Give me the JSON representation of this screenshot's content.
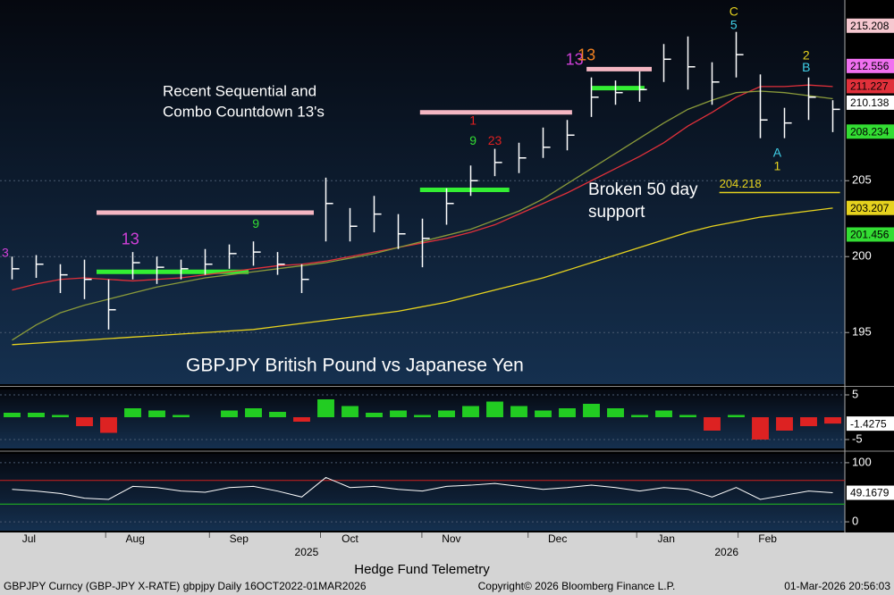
{
  "chart_data": [
    {
      "type": "ohlc",
      "title": "GBPJPY British Pound vs Japanese Yen",
      "x": [
        0,
        1,
        2,
        3,
        4,
        5,
        6,
        7,
        8,
        9,
        10,
        11,
        12,
        13,
        14,
        15,
        16,
        17,
        18,
        19,
        20,
        21,
        22,
        23,
        24,
        25,
        26,
        27,
        28,
        29,
        30,
        31,
        32,
        33,
        34
      ],
      "high": [
        200,
        200.1,
        199.5,
        199.8,
        198.5,
        200.3,
        200,
        199.8,
        200.5,
        200.8,
        201,
        200.3,
        199.5,
        205.2,
        203.2,
        204,
        202.8,
        202.5,
        204.5,
        206,
        207.1,
        207.5,
        208.5,
        209,
        211.8,
        211.6,
        212.2,
        214,
        214.5,
        212.8,
        214.8,
        212,
        209.8,
        211.8,
        210.3
      ],
      "low": [
        198.5,
        198.6,
        197.6,
        197.2,
        195.2,
        198.5,
        198.2,
        198.5,
        198.8,
        199.2,
        199.4,
        198.8,
        197.6,
        201,
        201,
        201.6,
        200.5,
        199.3,
        202.1,
        204,
        205.3,
        205.5,
        206.5,
        207,
        209.2,
        210,
        210.2,
        211.5,
        211,
        210,
        211.8,
        207.8,
        207.8,
        209,
        208.2
      ],
      "close": [
        199.2,
        199.5,
        198.8,
        198.5,
        196.5,
        199.6,
        199.3,
        199.2,
        199.5,
        200.2,
        200.3,
        199.5,
        198.5,
        203.5,
        202,
        202.8,
        201.5,
        201.2,
        203.5,
        205,
        206.2,
        206.5,
        207.2,
        208,
        210.5,
        210.8,
        211,
        213,
        212.5,
        211.5,
        213.3,
        209,
        208.8,
        210.5,
        209.7
      ],
      "bar_color": "#ffffff",
      "series": [
        {
          "color": "#e0303a",
          "values": [
            197.8,
            198.2,
            198.5,
            198.6,
            198.5,
            198.4,
            198.5,
            198.6,
            198.8,
            199,
            199.2,
            199.4,
            199.5,
            199.7,
            200,
            200.3,
            200.6,
            200.9,
            201.2,
            201.6,
            202.1,
            202.8,
            203.5,
            204.2,
            205,
            205.8,
            206.6,
            207.5,
            208.6,
            209.5,
            210.5,
            211.2,
            211.2,
            211.3,
            211.2
          ]
        },
        {
          "color": "#8a9a3a",
          "values": [
            194.5,
            195.5,
            196.3,
            196.8,
            197.2,
            197.6,
            198,
            198.3,
            198.6,
            198.8,
            199,
            199.2,
            199.4,
            199.6,
            199.9,
            200.2,
            200.6,
            201,
            201.4,
            201.8,
            202.4,
            203,
            203.8,
            204.8,
            205.8,
            206.8,
            207.8,
            208.8,
            209.7,
            210.3,
            210.8,
            210.9,
            210.8,
            210.6,
            210.4
          ]
        },
        {
          "color": "#e6d21e",
          "values": [
            194.2,
            194.3,
            194.4,
            194.5,
            194.6,
            194.7,
            194.8,
            194.9,
            195,
            195.1,
            195.2,
            195.4,
            195.6,
            195.8,
            196,
            196.2,
            196.4,
            196.7,
            197,
            197.4,
            197.8,
            198.2,
            198.6,
            199.1,
            199.6,
            200.1,
            200.6,
            201.1,
            201.6,
            202,
            202.3,
            202.6,
            202.8,
            203,
            203.2
          ]
        }
      ],
      "levels": [
        {
          "value": 202.9,
          "from": 3.5,
          "to": 12.5,
          "color": "#f4b6c2",
          "width": 5
        },
        {
          "value": 209.5,
          "from": 16.9,
          "to": 23.2,
          "color": "#f4b6c2",
          "width": 5
        },
        {
          "value": 212.35,
          "from": 23.8,
          "to": 26.5,
          "color": "#f4b6c2",
          "width": 5
        },
        {
          "value": 199.0,
          "from": 3.5,
          "to": 9.8,
          "color": "#33ee33",
          "width": 5
        },
        {
          "value": 204.4,
          "from": 16.9,
          "to": 20.6,
          "color": "#33ee33",
          "width": 5
        },
        {
          "value": 211.1,
          "from": 24,
          "to": 26.2,
          "color": "#33ee33",
          "width": 5
        },
        {
          "value": 204.218,
          "from": 29.3,
          "to": 34.3,
          "color": "#e6d21e",
          "width": 1.5
        }
      ],
      "level_label": 204.218,
      "annotations": [
        {
          "text": "3",
          "x": -0.28,
          "y": 200.2,
          "color": "#d040d8"
        },
        {
          "text": "13",
          "x": 4.9,
          "y": 201.1,
          "color": "#d040d8"
        },
        {
          "text": "9",
          "x": 10.1,
          "y": 202.1,
          "color": "#33dd33"
        },
        {
          "text": "9",
          "x": 19.1,
          "y": 207.6,
          "color": "#33dd33"
        },
        {
          "text": "1",
          "x": 19.1,
          "y": 208.9,
          "color": "#e02020"
        },
        {
          "text": "23",
          "x": 20,
          "y": 207.6,
          "color": "#e02020"
        },
        {
          "text": "13",
          "x": 23.3,
          "y": 212.9,
          "color": "#d040d8"
        },
        {
          "text": "13",
          "x": 23.8,
          "y": 213.2,
          "color": "#f08020"
        },
        {
          "text": "C",
          "x": 29.9,
          "y": 216.1,
          "color": "#e6d21e"
        },
        {
          "text": "5",
          "x": 29.9,
          "y": 215.2,
          "color": "#40d0e8"
        },
        {
          "text": "A",
          "x": 31.7,
          "y": 206.8,
          "color": "#40d0e8"
        },
        {
          "text": "1",
          "x": 31.7,
          "y": 205.9,
          "color": "#e6d21e"
        },
        {
          "text": "2",
          "x": 32.9,
          "y": 213.2,
          "color": "#e6d21e"
        },
        {
          "text": "B",
          "x": 32.9,
          "y": 212.4,
          "color": "#40d0e8"
        }
      ],
      "notes": [
        "Recent Sequential and",
        "Combo Countdown 13's",
        "Broken 50 day",
        "support"
      ],
      "tags": [
        {
          "value": 215.208,
          "color": "#f6c8d0"
        },
        {
          "value": 212.556,
          "color": "#f070f0"
        },
        {
          "value": 211.227,
          "color": "#e0303a"
        },
        {
          "value": 210.138,
          "color": "#ffffff"
        },
        {
          "value": 208.234,
          "color": "#33dd33"
        },
        {
          "value": 203.207,
          "color": "#e6d21e"
        },
        {
          "value": 201.456,
          "color": "#33dd33"
        }
      ],
      "xlim": [
        -0.5,
        34.5
      ],
      "ylim": [
        191.6,
        216.9
      ],
      "yticks": [
        195,
        200,
        205
      ]
    },
    {
      "type": "bar",
      "up_color": "#22cc22",
      "down_color": "#dd2222",
      "values": [
        1,
        1,
        0.5,
        -2,
        -3.5,
        2,
        1.5,
        0.5,
        0,
        1.5,
        2,
        1.2,
        -1,
        4,
        2.5,
        1,
        1.5,
        0.5,
        1.5,
        2.5,
        3.5,
        2.5,
        1.5,
        2,
        3,
        2,
        0.5,
        1.5,
        0.5,
        -3,
        0.5,
        -5,
        -3,
        -2,
        -1.4275
      ],
      "xlim": [
        -0.5,
        34.5
      ],
      "ylim": [
        -7,
        6.2
      ],
      "yticks": [
        -5,
        5
      ]
    },
    {
      "type": "line",
      "color": "#ffffff",
      "values": [
        55,
        52,
        48,
        40,
        38,
        60,
        58,
        52,
        50,
        58,
        60,
        52,
        42,
        75,
        58,
        60,
        55,
        52,
        60,
        62,
        65,
        60,
        55,
        58,
        62,
        58,
        52,
        58,
        55,
        42,
        58,
        38,
        45,
        52,
        49.1679
      ],
      "bands": [
        {
          "value": 70,
          "color": "#d02020"
        },
        {
          "value": 30,
          "color": "#20c020"
        }
      ],
      "xlim": [
        -0.5,
        34.5
      ],
      "ylim": [
        -15,
        115
      ],
      "yticks": [
        0,
        100
      ]
    }
  ],
  "axis": {
    "months": [
      {
        "value": 0.7,
        "label": "Jul"
      },
      {
        "value": 5.1,
        "label": "Aug"
      },
      {
        "value": 9.4,
        "label": "Sep"
      },
      {
        "value": 14,
        "label": "Oct"
      },
      {
        "value": 18.2,
        "label": "Nov"
      },
      {
        "value": 22.6,
        "label": "Dec"
      },
      {
        "value": 27.1,
        "label": "Jan"
      },
      {
        "value": 31.3,
        "label": "Feb"
      }
    ],
    "years": [
      {
        "value": 12.2,
        "label": "2025"
      },
      {
        "value": 29.6,
        "label": "2026"
      }
    ]
  },
  "footer": {
    "center": "Hedge Fund Telemetry",
    "left": "GBPJPY Curncy (GBP-JPY X-RATE) gbpjpy Daily 16OCT2022-01MAR2026",
    "copyright": "Copyright© 2026 Bloomberg Finance L.P.",
    "date": "01-Mar-2026 20:56:03"
  }
}
